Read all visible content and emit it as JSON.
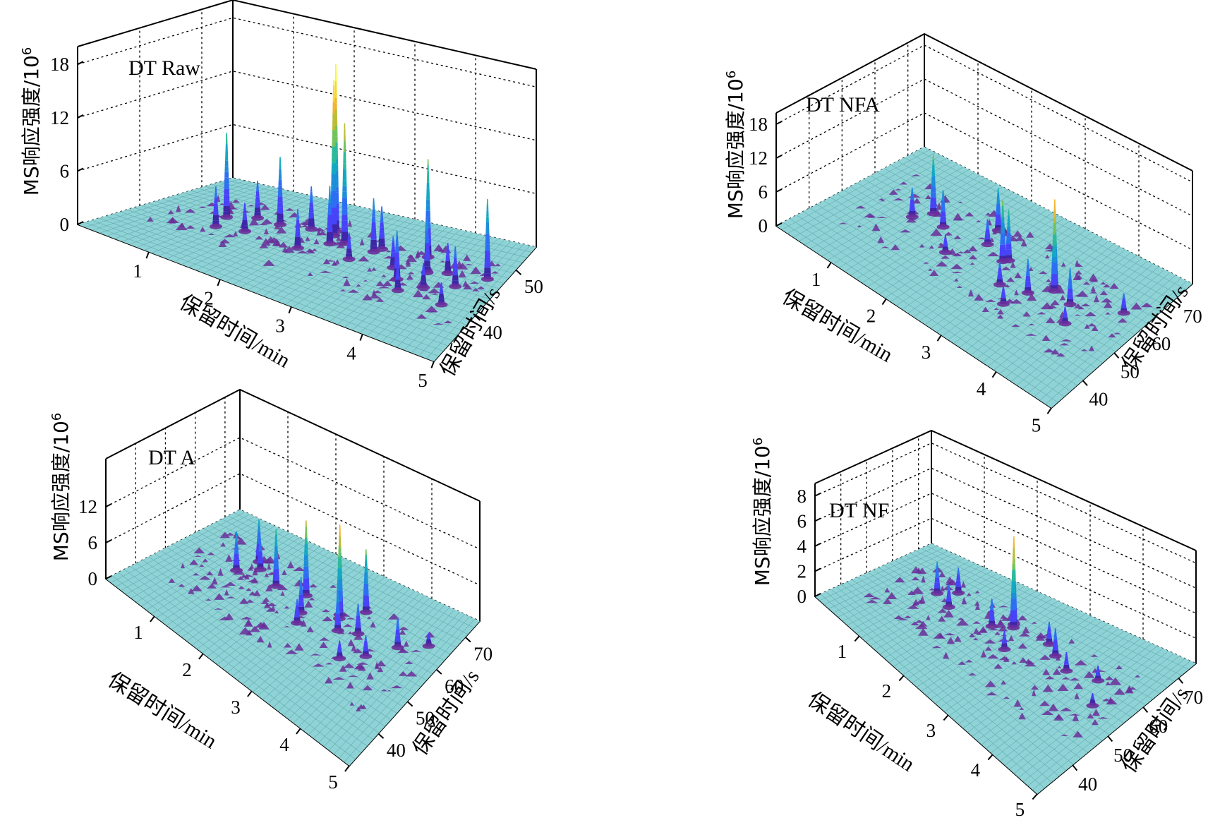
{
  "chart_data": [
    {
      "type": "surface3d",
      "title": "DT Raw",
      "xlabel": "保留时间/min",
      "ylabel": "保留时间/s",
      "zlabel": "MS响应强度/10",
      "zlabel_sup": "6",
      "xlim": [
        0,
        5
      ],
      "ylim": [
        30,
        55
      ],
      "zlim": [
        0,
        20
      ],
      "x_ticks": [
        "1",
        "2",
        "3",
        "4",
        "5"
      ],
      "y_ticks": [
        "40",
        "50"
      ],
      "z_ticks": [
        "0",
        "6",
        "12",
        "18"
      ],
      "peaks": [
        {
          "x": 0.95,
          "y": 44,
          "z": 9.5
        },
        {
          "x": 1.05,
          "y": 41,
          "z": 4.5
        },
        {
          "x": 1.25,
          "y": 46,
          "z": 4.2
        },
        {
          "x": 1.6,
          "y": 46,
          "z": 7.6
        },
        {
          "x": 2.0,
          "y": 47,
          "z": 4.8
        },
        {
          "x": 2.3,
          "y": 48,
          "z": 18.8
        },
        {
          "x": 2.35,
          "y": 47,
          "z": 17.5
        },
        {
          "x": 2.6,
          "y": 46,
          "z": 13.5
        },
        {
          "x": 2.45,
          "y": 45,
          "z": 6.5
        },
        {
          "x": 2.2,
          "y": 42,
          "z": 4.4
        },
        {
          "x": 3.1,
          "y": 47,
          "z": 4.8
        },
        {
          "x": 3.05,
          "y": 46,
          "z": 6.0
        },
        {
          "x": 3.5,
          "y": 44,
          "z": 3.5
        },
        {
          "x": 3.7,
          "y": 42,
          "z": 5.5
        },
        {
          "x": 3.75,
          "y": 48,
          "z": 11.0
        },
        {
          "x": 3.95,
          "y": 45,
          "z": 6.0
        },
        {
          "x": 3.85,
          "y": 40,
          "z": 3.0
        },
        {
          "x": 4.1,
          "y": 42,
          "z": 2.8
        },
        {
          "x": 4.2,
          "y": 46,
          "z": 3.4
        },
        {
          "x": 4.45,
          "y": 44,
          "z": 4.5
        },
        {
          "x": 4.75,
          "y": 47,
          "z": 9.0
        },
        {
          "x": 4.5,
          "y": 40,
          "z": 2.5
        },
        {
          "x": 2.9,
          "y": 43,
          "z": 3.0
        },
        {
          "x": 1.4,
          "y": 42,
          "z": 3.2
        }
      ]
    },
    {
      "type": "surface3d",
      "title": "DT NFA",
      "xlabel": "保留时间/min",
      "ylabel": "保留时间/s",
      "zlabel": "MS响应强度/10",
      "zlabel_sup": "6",
      "xlim": [
        0,
        5
      ],
      "ylim": [
        30,
        75
      ],
      "zlim": [
        0,
        20
      ],
      "x_ticks": [
        "1",
        "2",
        "3",
        "4",
        "5"
      ],
      "y_ticks": [
        "40",
        "50",
        "60",
        "70"
      ],
      "z_ticks": [
        "0",
        "6",
        "12",
        "18"
      ],
      "peaks": [
        {
          "x": 1.2,
          "y": 58,
          "z": 10.5
        },
        {
          "x": 1.05,
          "y": 54,
          "z": 5.2
        },
        {
          "x": 1.5,
          "y": 56,
          "z": 6.5
        },
        {
          "x": 2.1,
          "y": 63,
          "z": 7.5
        },
        {
          "x": 2.2,
          "y": 58,
          "z": 4.5
        },
        {
          "x": 2.6,
          "y": 56,
          "z": 10.8
        },
        {
          "x": 2.65,
          "y": 57,
          "z": 9.0
        },
        {
          "x": 3.5,
          "y": 57,
          "z": 15.5
        },
        {
          "x": 3.55,
          "y": 56,
          "z": 14.0
        },
        {
          "x": 3.3,
          "y": 52,
          "z": 6.0
        },
        {
          "x": 3.9,
          "y": 55,
          "z": 6.5
        },
        {
          "x": 2.9,
          "y": 50,
          "z": 4.0
        },
        {
          "x": 3.2,
          "y": 46,
          "z": 3.2
        },
        {
          "x": 4.6,
          "y": 60,
          "z": 3.5
        },
        {
          "x": 1.9,
          "y": 50,
          "z": 3.0
        },
        {
          "x": 4.1,
          "y": 50,
          "z": 3.0
        }
      ]
    },
    {
      "type": "surface3d",
      "title": "DT A",
      "xlabel": "保留时间/min",
      "ylabel": "保留时间/s",
      "zlabel": "MS响应强度/10",
      "zlabel_sup": "6",
      "xlim": [
        0,
        5
      ],
      "ylim": [
        30,
        75
      ],
      "zlim": [
        0,
        20
      ],
      "x_ticks": [
        "1",
        "2",
        "3",
        "4",
        "5"
      ],
      "y_ticks": [
        "40",
        "50",
        "60",
        "70"
      ],
      "z_ticks": [
        "0",
        "6",
        "12"
      ],
      "peaks": [
        {
          "x": 1.1,
          "y": 56,
          "z": 6.5
        },
        {
          "x": 1.2,
          "y": 62,
          "z": 7.0
        },
        {
          "x": 1.35,
          "y": 60,
          "z": 5.0
        },
        {
          "x": 1.8,
          "y": 58,
          "z": 9.5
        },
        {
          "x": 2.3,
          "y": 60,
          "z": 12.5
        },
        {
          "x": 2.5,
          "y": 55,
          "z": 6.0
        },
        {
          "x": 3.0,
          "y": 60,
          "z": 15.0
        },
        {
          "x": 3.05,
          "y": 59,
          "z": 13.0
        },
        {
          "x": 3.2,
          "y": 56,
          "z": 6.5
        },
        {
          "x": 2.6,
          "y": 52,
          "z": 4.0
        },
        {
          "x": 3.3,
          "y": 64,
          "z": 10.5
        },
        {
          "x": 3.5,
          "y": 58,
          "z": 5.0
        },
        {
          "x": 4.2,
          "y": 60,
          "z": 5.0
        },
        {
          "x": 3.9,
          "y": 54,
          "z": 3.5
        },
        {
          "x": 4.6,
          "y": 64,
          "z": 2.2
        },
        {
          "x": 3.6,
          "y": 50,
          "z": 3.0
        }
      ]
    },
    {
      "type": "surface3d",
      "title": "DT NF",
      "xlabel": "保留时间/min",
      "ylabel": "保留时间/s",
      "zlabel": "MS响应强度/10",
      "zlabel_sup": "6",
      "xlim": [
        0,
        5
      ],
      "ylim": [
        30,
        75
      ],
      "zlim": [
        0,
        9
      ],
      "x_ticks": [
        "1",
        "2",
        "3",
        "4",
        "5"
      ],
      "y_ticks": [
        "40",
        "50",
        "60",
        "70"
      ],
      "z_ticks": [
        "0",
        "2",
        "4",
        "6",
        "8"
      ],
      "peaks": [
        {
          "x": 1.0,
          "y": 58,
          "z": 2.5
        },
        {
          "x": 1.2,
          "y": 62,
          "z": 2.0
        },
        {
          "x": 1.35,
          "y": 56,
          "z": 1.8
        },
        {
          "x": 2.3,
          "y": 62,
          "z": 7.0
        },
        {
          "x": 2.35,
          "y": 61,
          "z": 6.0
        },
        {
          "x": 2.1,
          "y": 58,
          "z": 2.2
        },
        {
          "x": 3.0,
          "y": 62,
          "z": 1.8
        },
        {
          "x": 3.25,
          "y": 60,
          "z": 2.2
        },
        {
          "x": 2.6,
          "y": 54,
          "z": 1.5
        },
        {
          "x": 3.6,
          "y": 58,
          "z": 1.5
        },
        {
          "x": 4.1,
          "y": 60,
          "z": 1.2
        },
        {
          "x": 4.4,
          "y": 54,
          "z": 1.0
        }
      ]
    }
  ]
}
